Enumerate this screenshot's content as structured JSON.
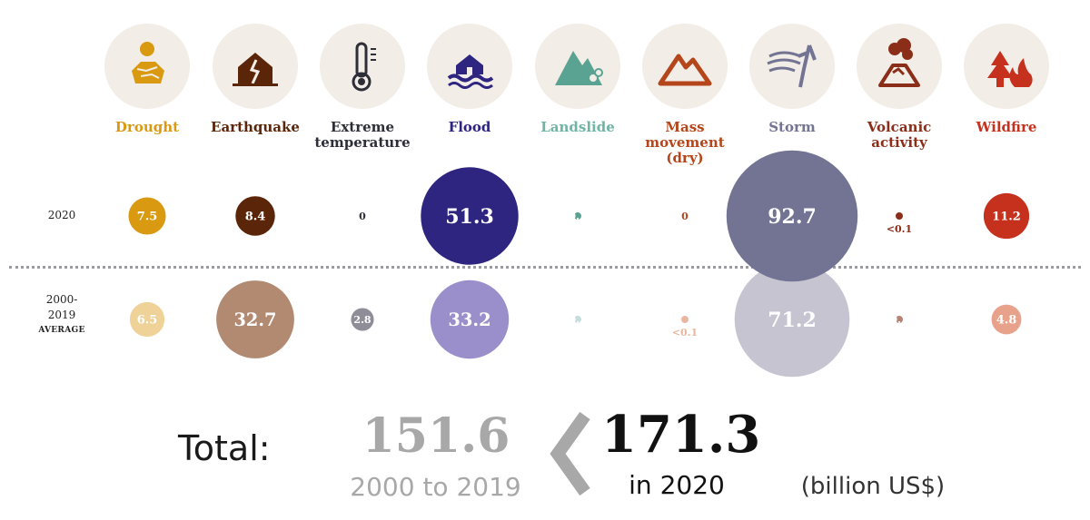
{
  "chart_data": {
    "type": "bubble",
    "unit": "(billion US$)",
    "rows": [
      {
        "label": "2020",
        "sublabel": ""
      },
      {
        "label": "2000-\n2019",
        "sublabel": "AVERAGE"
      }
    ],
    "categories": [
      {
        "name": "Drought",
        "icon": "drought-icon",
        "color": "#d99a12",
        "avg_color": "#efd298",
        "label_color": "#d99a12",
        "value_2020": 7.5,
        "label_2020": "7.5",
        "value_avg": 6.5,
        "label_avg": "6.5"
      },
      {
        "name": "Earthquake",
        "icon": "earthquake-icon",
        "color": "#5a2509",
        "avg_color": "#b28a72",
        "label_color": "#5a2509",
        "value_2020": 8.4,
        "label_2020": "8.4",
        "value_avg": 32.7,
        "label_avg": "32.7"
      },
      {
        "name": "Extreme\ntemperature",
        "icon": "thermometer-icon",
        "color": "#2e2e38",
        "avg_color": "#8f8e98",
        "label_color": "#2e2e38",
        "value_2020": 0,
        "label_2020": "0",
        "value_avg": 2.8,
        "label_avg": "2.8"
      },
      {
        "name": "Flood",
        "icon": "flood-icon",
        "color": "#2e2580",
        "avg_color": "#9a8fcb",
        "label_color": "#2e2580",
        "value_2020": 51.3,
        "label_2020": "51.3",
        "value_avg": 33.2,
        "label_avg": "33.2"
      },
      {
        "name": "Landslide",
        "icon": "landslide-icon",
        "color": "#5aa393",
        "avg_color": "#c6dedb",
        "label_color": "#6fb5a6",
        "value_2020": 0.1,
        "label_2020": "0.1",
        "value_avg": 0.3,
        "label_avg": "0.3"
      },
      {
        "name": "Mass\nmovement\n(dry)",
        "icon": "mountain-icon",
        "color": "#b5461c",
        "avg_color": "#e9b7a0",
        "label_color": "#b5461c",
        "value_2020": 0,
        "label_2020": "0",
        "value_avg": 0.04,
        "label_avg": "<0.1"
      },
      {
        "name": "Storm",
        "icon": "storm-icon",
        "color": "#737493",
        "avg_color": "#c5c4d0",
        "label_color": "#737493",
        "value_2020": 92.7,
        "label_2020": "92.7",
        "value_avg": 71.2,
        "label_avg": "71.2"
      },
      {
        "name": "Volcanic\nactivity",
        "icon": "volcano-icon",
        "color": "#8a2e1a",
        "avg_color": "#b78372",
        "label_color": "#8a2e1a",
        "value_2020": 0.04,
        "label_2020": "<0.1",
        "value_avg": 0.1,
        "label_avg": "0.1"
      },
      {
        "name": "Wildfire",
        "icon": "wildfire-icon",
        "color": "#c5311d",
        "avg_color": "#e8a18a",
        "label_color": "#c5311d",
        "value_2020": 11.2,
        "label_2020": "11.2",
        "value_avg": 4.8,
        "label_avg": "4.8"
      }
    ]
  },
  "totals": {
    "label": "Total:",
    "previous_value": "151.6",
    "previous_period": "2000 to 2019",
    "current_value": "171.3",
    "current_period": "in 2020",
    "unit": "(billion US$)"
  }
}
